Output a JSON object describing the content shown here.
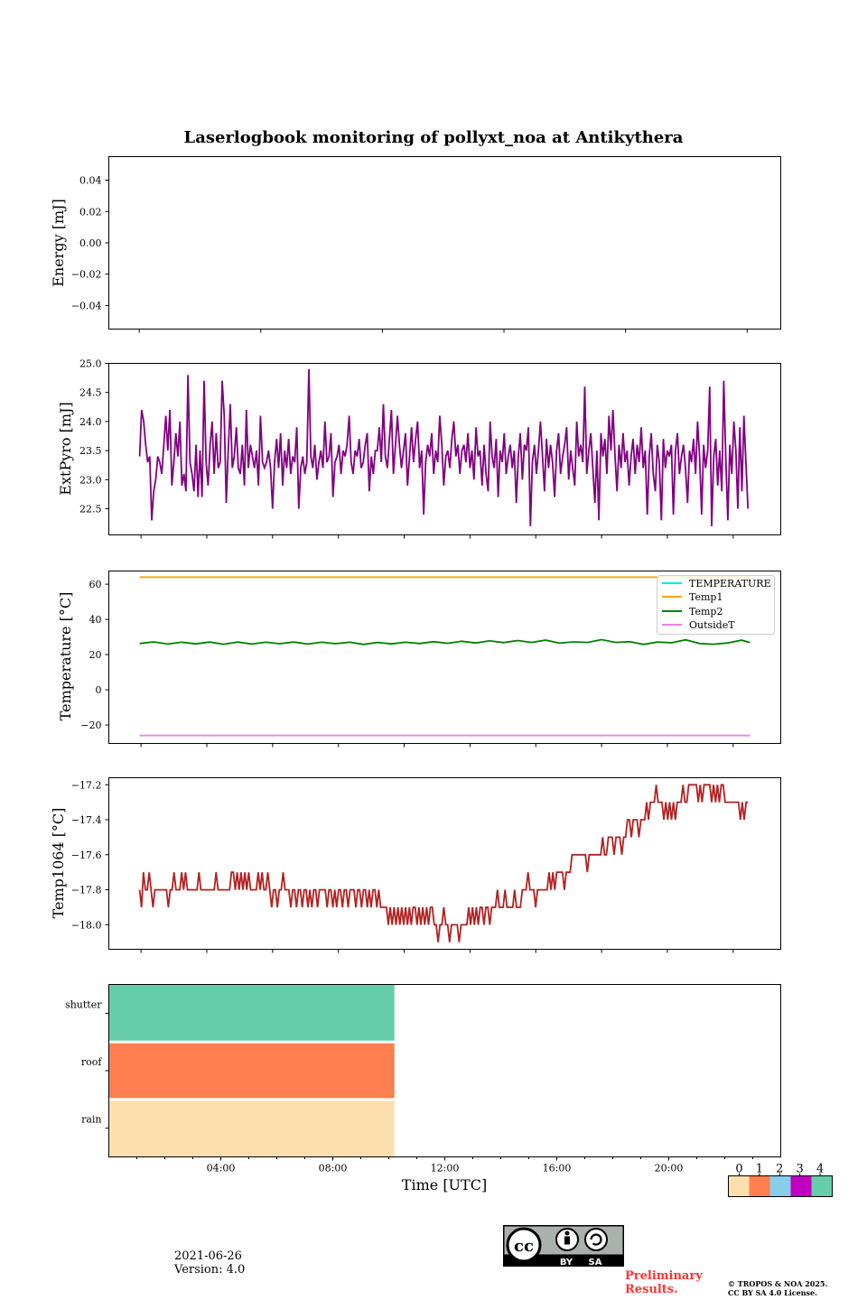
{
  "title": "Laserlogbook monitoring of pollyxt_noa at Antikythera",
  "date": "2021-06-26",
  "version": "Version: 4.0",
  "preliminary": "Preliminary Results.",
  "copyright_line1": "© TROPOS & NOA 2025.",
  "copyright_line2": "CC BY SA 4.0 License.",
  "cc_badge": {
    "label_by": "BY",
    "label_sa": "SA"
  },
  "colors": {
    "extpyro": "#800080",
    "temperature": "#00e5ee",
    "temp1": "#ffa500",
    "temp2": "#008000",
    "outsidet": "#ee82ee",
    "temp1064": "#b22222",
    "status": [
      "#fddfad",
      "#ff7f50",
      "#87ceeb",
      "#c000c0",
      "#66cdaa"
    ],
    "cc_gray": "#aab0ab",
    "preliminary_text": "#ff3333"
  },
  "chart_data": [
    {
      "type": "line",
      "ylabel": "Energy [mJ]",
      "ylim": [
        -0.055,
        0.055
      ],
      "yticks": [
        0.04,
        0.02,
        0.0,
        -0.02,
        -0.04
      ],
      "ytick_labels": [
        "0.04",
        "0.02",
        "0.00",
        "−0.02",
        "−0.04"
      ],
      "series": []
    },
    {
      "type": "line",
      "ylabel": "ExtPyro [mJ]",
      "xlim_hours": [
        0.0,
        24.0
      ],
      "ylim": [
        22.05,
        25.0
      ],
      "yticks": [
        22.5,
        23.0,
        23.5,
        24.0,
        24.5,
        25.0
      ],
      "ytick_labels": [
        "22.5",
        "23.0",
        "23.5",
        "24.0",
        "24.5",
        "25.0"
      ],
      "series": [
        {
          "name": "",
          "x_start_hours": 1.1,
          "x_step_hours": 0.05,
          "values": [
            23.4,
            24.2,
            24.0,
            23.6,
            23.3,
            23.4,
            22.3,
            22.8,
            23.0,
            23.4,
            23.3,
            23.1,
            23.6,
            24.1,
            23.5,
            24.2,
            22.9,
            23.3,
            23.8,
            23.4,
            24.0,
            22.9,
            23.1,
            22.8,
            24.8,
            23.3,
            23.1,
            22.8,
            23.6,
            22.7,
            23.5,
            22.7,
            24.7,
            23.3,
            22.9,
            23.6,
            24.0,
            23.1,
            23.8,
            23.2,
            23.3,
            24.7,
            24.1,
            22.6,
            23.5,
            24.3,
            23.2,
            23.4,
            23.9,
            23.2,
            23.1,
            23.6,
            22.9,
            24.2,
            23.2,
            23.6,
            23.4,
            23.2,
            23.5,
            22.9,
            24.1,
            23.3,
            23.2,
            23.3,
            23.5,
            23.2,
            22.5,
            23.3,
            23.7,
            23.2,
            23.8,
            22.9,
            23.5,
            23.2,
            23.7,
            23.1,
            23.4,
            23.3,
            23.9,
            22.5,
            23.2,
            23.4,
            23.1,
            23.3,
            24.9,
            23.4,
            23.2,
            23.6,
            23.0,
            23.3,
            23.5,
            23.2,
            24.0,
            23.3,
            23.4,
            23.8,
            22.7,
            23.3,
            23.4,
            23.6,
            23.1,
            23.5,
            23.4,
            23.6,
            24.1,
            23.3,
            23.1,
            23.5,
            23.4,
            23.7,
            23.2,
            23.3,
            23.6,
            23.8,
            22.8,
            23.4,
            23.1,
            23.5,
            23.5,
            23.9,
            23.3,
            24.3,
            23.4,
            23.2,
            23.7,
            24.2,
            23.1,
            23.6,
            24.1,
            23.6,
            23.2,
            23.5,
            23.8,
            22.9,
            23.4,
            23.9,
            23.3,
            23.7,
            24.0,
            23.2,
            23.5,
            22.4,
            23.3,
            23.6,
            23.4,
            23.8,
            23.1,
            23.5,
            23.3,
            24.1,
            23.6,
            22.9,
            23.4,
            23.5,
            23.2,
            23.7,
            24.0,
            23.4,
            23.6,
            23.1,
            23.5,
            23.6,
            23.3,
            23.8,
            23.2,
            23.5,
            23.0,
            23.9,
            23.4,
            23.5,
            22.9,
            23.6,
            23.1,
            22.8,
            24.0,
            23.4,
            23.2,
            23.7,
            22.7,
            23.5,
            23.3,
            23.8,
            23.1,
            23.4,
            23.6,
            23.2,
            23.5,
            22.6,
            23.4,
            23.8,
            23.0,
            23.6,
            23.5,
            23.9,
            22.2,
            23.3,
            23.6,
            23.1,
            23.5,
            24.0,
            23.4,
            22.8,
            23.7,
            23.2,
            23.6,
            23.3,
            22.7,
            23.5,
            23.8,
            23.1,
            23.4,
            23.6,
            23.9,
            23.0,
            23.5,
            23.2,
            22.9,
            24.0,
            23.4,
            23.6,
            23.3,
            24.6,
            23.1,
            23.5,
            23.8,
            23.2,
            22.6,
            23.5,
            22.3,
            23.8,
            23.4,
            23.7,
            23.1,
            24.1,
            23.5,
            24.2,
            23.4,
            22.8,
            23.6,
            23.2,
            23.8,
            23.3,
            23.5,
            22.9,
            23.4,
            23.7,
            23.1,
            23.6,
            23.3,
            23.9,
            23.2,
            23.5,
            22.4,
            23.4,
            23.8,
            23.1,
            22.8,
            23.6,
            23.3,
            22.3,
            23.7,
            23.2,
            23.5,
            23.4,
            23.6,
            22.4,
            23.5,
            23.8,
            23.1,
            23.4,
            23.6,
            23.2,
            22.6,
            23.5,
            23.3,
            23.7,
            23.1,
            24.0,
            23.4,
            22.4,
            23.6,
            23.2,
            23.5,
            24.6,
            22.2,
            23.4,
            23.7,
            22.9,
            23.5,
            22.8,
            24.7,
            23.4,
            22.3,
            23.6,
            23.1,
            24.0,
            23.5,
            22.5,
            23.9,
            22.8,
            24.1,
            23.3,
            22.5
          ]
        }
      ]
    },
    {
      "type": "line",
      "ylabel": "Temperature [°C]",
      "xlim_hours": [
        0.0,
        24.0
      ],
      "ylim": [
        -30.5,
        67.5
      ],
      "yticks": [
        60,
        40,
        20,
        0,
        -20
      ],
      "ytick_labels": [
        "60",
        "40",
        "20",
        "0",
        "−20"
      ],
      "legend_position": "top-right",
      "series": [
        {
          "name": "TEMPERATURE",
          "x_hours": [
            1.1,
            22.9
          ],
          "values": [
            null,
            null
          ]
        },
        {
          "name": "Temp1",
          "x_hours": [
            1.1,
            22.9
          ],
          "values": [
            64.0,
            64.0
          ]
        },
        {
          "name": "Temp2",
          "x_hours": [
            1.1,
            1.6,
            2.1,
            2.6,
            3.1,
            3.6,
            4.1,
            4.6,
            5.1,
            5.6,
            6.1,
            6.6,
            7.1,
            7.6,
            8.1,
            8.6,
            9.1,
            9.6,
            10.1,
            10.6,
            11.1,
            11.6,
            12.1,
            12.6,
            13.1,
            13.6,
            14.1,
            14.6,
            15.1,
            15.6,
            16.1,
            16.6,
            17.1,
            17.6,
            18.1,
            18.6,
            19.1,
            19.6,
            20.1,
            20.6,
            21.1,
            21.6,
            22.1,
            22.6,
            22.9
          ],
          "values": [
            26.3,
            27.2,
            26.0,
            27.0,
            26.1,
            27.1,
            25.9,
            27.1,
            26.0,
            27.0,
            26.2,
            27.1,
            26.0,
            27.0,
            26.2,
            27.0,
            25.8,
            26.9,
            26.1,
            27.0,
            26.3,
            27.3,
            26.4,
            27.6,
            26.6,
            27.8,
            26.8,
            28.0,
            26.9,
            28.2,
            26.5,
            27.2,
            26.9,
            28.5,
            26.9,
            27.3,
            25.8,
            27.1,
            26.7,
            28.4,
            26.3,
            25.9,
            26.6,
            28.2,
            26.8
          ]
        },
        {
          "name": "OutsideT",
          "x_hours": [
            1.1,
            22.9
          ],
          "values": [
            -26.0,
            -26.0
          ]
        }
      ]
    },
    {
      "type": "line",
      "ylabel": "Temp1064 [°C]",
      "xlim_hours": [
        0.0,
        24.0
      ],
      "ylim": [
        -18.14,
        -17.16
      ],
      "yticks": [
        -17.2,
        -17.4,
        -17.6,
        -17.8,
        -18.0
      ],
      "ytick_labels": [
        "−17.2",
        "−17.4",
        "−17.6",
        "−17.8",
        "−18.0"
      ],
      "series": [
        {
          "name": "",
          "x_start_hours": 1.1,
          "x_step_hours": 0.05,
          "values": [
            -17.8,
            -17.9,
            -17.7,
            -17.8,
            -17.8,
            -17.7,
            -17.8,
            -17.9,
            -17.8,
            -17.8,
            -17.8,
            -17.8,
            -17.8,
            -17.8,
            -17.8,
            -17.9,
            -17.8,
            -17.8,
            -17.7,
            -17.8,
            -17.8,
            -17.8,
            -17.7,
            -17.8,
            -17.7,
            -17.8,
            -17.8,
            -17.8,
            -17.8,
            -17.8,
            -17.8,
            -17.7,
            -17.8,
            -17.8,
            -17.8,
            -17.8,
            -17.8,
            -17.8,
            -17.8,
            -17.8,
            -17.7,
            -17.8,
            -17.8,
            -17.8,
            -17.8,
            -17.8,
            -17.8,
            -17.8,
            -17.7,
            -17.7,
            -17.8,
            -17.7,
            -17.8,
            -17.7,
            -17.8,
            -17.7,
            -17.8,
            -17.7,
            -17.8,
            -17.8,
            -17.8,
            -17.8,
            -17.7,
            -17.8,
            -17.7,
            -17.8,
            -17.8,
            -17.7,
            -17.8,
            -17.9,
            -17.8,
            -17.8,
            -17.9,
            -17.8,
            -17.8,
            -17.7,
            -17.8,
            -17.8,
            -17.8,
            -17.9,
            -17.8,
            -17.8,
            -17.9,
            -17.8,
            -17.8,
            -17.9,
            -17.8,
            -17.8,
            -17.9,
            -17.8,
            -17.9,
            -17.8,
            -17.8,
            -17.9,
            -17.8,
            -17.8,
            -17.8,
            -17.8,
            -17.9,
            -17.8,
            -17.8,
            -17.9,
            -17.8,
            -17.9,
            -17.8,
            -17.8,
            -17.9,
            -17.8,
            -17.8,
            -17.9,
            -17.8,
            -17.8,
            -17.8,
            -17.9,
            -17.8,
            -17.8,
            -17.9,
            -17.8,
            -17.8,
            -17.9,
            -17.8,
            -17.9,
            -17.8,
            -17.8,
            -17.9,
            -17.8,
            -17.9,
            -17.9,
            -17.9,
            -17.9,
            -18.0,
            -17.9,
            -18.0,
            -17.9,
            -18.0,
            -17.9,
            -18.0,
            -17.9,
            -18.0,
            -17.9,
            -18.0,
            -17.9,
            -18.0,
            -17.9,
            -17.9,
            -18.0,
            -17.9,
            -18.0,
            -17.9,
            -18.0,
            -17.9,
            -18.0,
            -17.9,
            -17.9,
            -18.0,
            -18.0,
            -18.1,
            -18.0,
            -18.0,
            -17.9,
            -18.0,
            -18.0,
            -18.1,
            -18.0,
            -18.0,
            -18.0,
            -18.0,
            -18.1,
            -18.0,
            -18.0,
            -18.0,
            -18.0,
            -17.9,
            -18.0,
            -17.9,
            -18.0,
            -17.9,
            -18.0,
            -17.9,
            -17.9,
            -18.0,
            -17.9,
            -17.9,
            -18.0,
            -17.9,
            -17.9,
            -17.9,
            -17.8,
            -17.9,
            -17.9,
            -17.9,
            -17.8,
            -17.9,
            -17.9,
            -17.9,
            -17.9,
            -17.8,
            -17.9,
            -17.9,
            -17.9,
            -17.8,
            -17.8,
            -17.8,
            -17.7,
            -17.8,
            -17.8,
            -17.8,
            -17.9,
            -17.8,
            -17.8,
            -17.8,
            -17.8,
            -17.8,
            -17.8,
            -17.7,
            -17.8,
            -17.7,
            -17.8,
            -17.7,
            -17.7,
            -17.7,
            -17.7,
            -17.8,
            -17.7,
            -17.7,
            -17.7,
            -17.6,
            -17.6,
            -17.6,
            -17.6,
            -17.6,
            -17.6,
            -17.6,
            -17.6,
            -17.7,
            -17.6,
            -17.6,
            -17.6,
            -17.6,
            -17.6,
            -17.6,
            -17.6,
            -17.5,
            -17.6,
            -17.6,
            -17.5,
            -17.5,
            -17.5,
            -17.6,
            -17.5,
            -17.5,
            -17.5,
            -17.6,
            -17.5,
            -17.5,
            -17.4,
            -17.4,
            -17.5,
            -17.4,
            -17.4,
            -17.4,
            -17.5,
            -17.4,
            -17.4,
            -17.4,
            -17.3,
            -17.4,
            -17.3,
            -17.3,
            -17.3,
            -17.2,
            -17.3,
            -17.3,
            -17.3,
            -17.4,
            -17.3,
            -17.4,
            -17.3,
            -17.4,
            -17.3,
            -17.4,
            -17.3,
            -17.3,
            -17.3,
            -17.2,
            -17.3,
            -17.3,
            -17.2,
            -17.2,
            -17.2,
            -17.2,
            -17.2,
            -17.3,
            -17.2,
            -17.3,
            -17.2,
            -17.2,
            -17.2,
            -17.2,
            -17.3,
            -17.2,
            -17.3,
            -17.2,
            -17.3,
            -17.2,
            -17.2,
            -17.3,
            -17.3,
            -17.3,
            -17.3,
            -17.3,
            -17.3,
            -17.3,
            -17.3,
            -17.4,
            -17.3,
            -17.4,
            -17.3,
            -17.3
          ]
        }
      ]
    },
    {
      "type": "heatmap",
      "xlabel": "Time [UTC]",
      "xlim_hours": [
        0.0,
        24.0
      ],
      "xtick_labels": [
        "04:00",
        "08:00",
        "12:00",
        "16:00",
        "20:00"
      ],
      "xtick_hours": [
        4,
        8,
        12,
        16,
        20
      ],
      "rows": [
        "shutter",
        "roof",
        "rain"
      ],
      "row_values": [
        4,
        1,
        0
      ],
      "filled_until_hours": 10.2,
      "colorbar_labels": [
        "0",
        "1",
        "2",
        "3",
        "4"
      ]
    }
  ]
}
